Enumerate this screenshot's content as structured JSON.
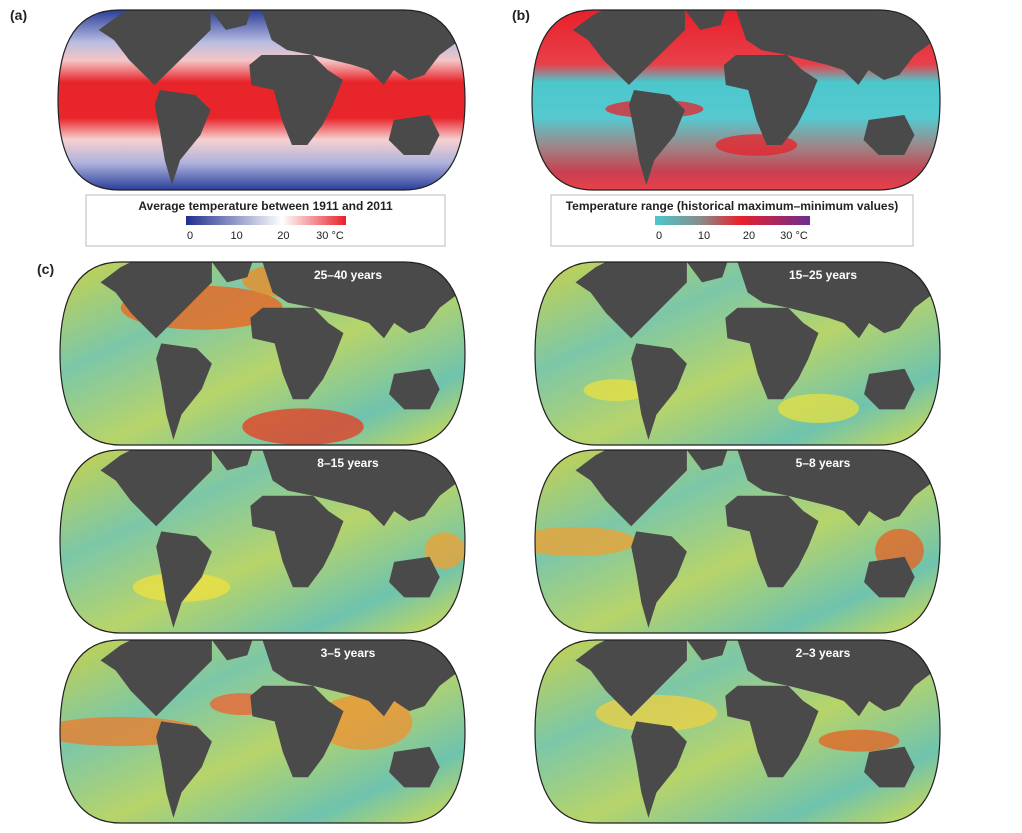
{
  "panel_a": {
    "label": "(a)",
    "legend_title": "Average temperature between 1911 and 2011",
    "ticks": [
      "0",
      "10",
      "20",
      "30 °C"
    ]
  },
  "panel_b": {
    "label": "(b)",
    "legend_title": "Temperature range (historical maximum–minimum values)",
    "ticks": [
      "0",
      "10",
      "20",
      "30 °C"
    ]
  },
  "panel_c": {
    "label": "(c)",
    "maps": [
      "25–40 years",
      "15–25 years",
      "8–15 years",
      "5–8 years",
      "3–5 years",
      "2–3 years"
    ]
  }
}
